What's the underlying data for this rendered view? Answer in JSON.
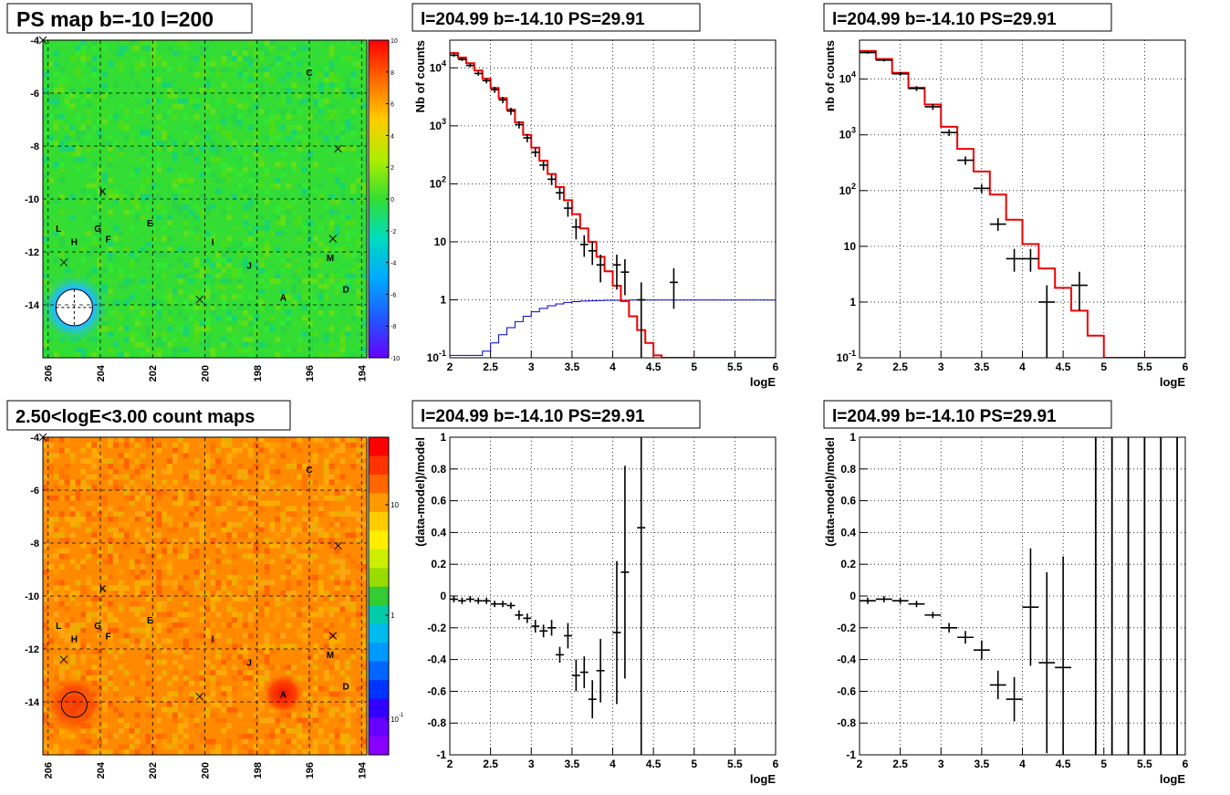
{
  "titles": {
    "p1": "PS map b=-10 l=200",
    "p2": "l=204.99 b=-14.10 PS=29.91",
    "p3": "l=204.99 b=-14.10 PS=29.91",
    "p4": "2.50<logE<3.00 count maps",
    "p5": "l=204.99 b=-14.10 PS=29.91",
    "p6": "l=204.99 b=-14.10 PS=29.91"
  },
  "chart_data": [
    {
      "id": "ps_map",
      "type": "heatmap",
      "title": "PS map b=-10 l=200",
      "x_ticks": [
        "206",
        "204",
        "202",
        "200",
        "198",
        "196",
        "194"
      ],
      "y_ticks": [
        "-4",
        "-6",
        "-8",
        "-10",
        "-12",
        "-14"
      ],
      "xlim": [
        206.2,
        193.8
      ],
      "ylim": [
        -16,
        -4
      ],
      "colorbar_ticks": [
        "10",
        "8",
        "6",
        "4",
        "2",
        "0",
        "-2",
        "-4",
        "-6",
        "-8",
        "-10"
      ],
      "colorbar_range": [
        -10,
        10
      ],
      "dominant_color": "#33dd33",
      "labels": [
        {
          "text": "C",
          "l": 196.0,
          "b": -5.2
        },
        {
          "text": "K",
          "l": 203.9,
          "b": -9.7
        },
        {
          "text": "L",
          "l": 205.6,
          "b": -11.1
        },
        {
          "text": "G",
          "l": 204.1,
          "b": -11.1
        },
        {
          "text": "F",
          "l": 203.7,
          "b": -11.5
        },
        {
          "text": "H",
          "l": 205.0,
          "b": -11.6
        },
        {
          "text": "E",
          "l": 202.1,
          "b": -10.9
        },
        {
          "text": "I",
          "l": 199.7,
          "b": -11.6
        },
        {
          "text": "J",
          "l": 198.3,
          "b": -12.5
        },
        {
          "text": "M",
          "l": 195.2,
          "b": -12.2
        },
        {
          "text": "A",
          "l": 197.0,
          "b": -13.7
        },
        {
          "text": "D",
          "l": 194.6,
          "b": -13.4
        }
      ],
      "crosses": [
        {
          "l": 206.2,
          "b": -4.0
        },
        {
          "l": 194.9,
          "b": -8.1
        },
        {
          "l": 195.1,
          "b": -11.5
        },
        {
          "l": 205.4,
          "b": -12.4
        },
        {
          "l": 200.2,
          "b": -13.8
        }
      ],
      "ps_circle": {
        "l": 205.0,
        "b": -14.1
      }
    },
    {
      "id": "spectrum_fine",
      "type": "line",
      "title": "l=204.99 b=-14.10 PS=29.91",
      "xlabel": "logE",
      "ylabel": "Nb of counts",
      "xlim": [
        2,
        6
      ],
      "ylim": [
        0.1,
        30000
      ],
      "yscale": "log",
      "x_ticks": [
        "2",
        "2.5",
        "3",
        "3.5",
        "4",
        "4.5",
        "5",
        "5.5",
        "6"
      ],
      "y_ticks": [
        "10^-1",
        "1",
        "10",
        "10^2",
        "10^3",
        "10^4"
      ],
      "grid": true,
      "model_bin_width": 0.1,
      "model_step_x": [
        2.0,
        2.1,
        2.2,
        2.3,
        2.4,
        2.5,
        2.6,
        2.7,
        2.8,
        2.9,
        3.0,
        3.1,
        3.2,
        3.3,
        3.4,
        3.5,
        3.6,
        3.7,
        3.8,
        3.9,
        4.0,
        4.1,
        4.2,
        4.3,
        4.4,
        4.5,
        4.6,
        4.7,
        4.8,
        4.9,
        5.0,
        5.1,
        5.2,
        5.3,
        5.4,
        5.5,
        5.6,
        5.7,
        5.8,
        5.9
      ],
      "model_step_y": [
        18000,
        15000,
        12000,
        9000,
        6500,
        4500,
        3000,
        1900,
        1150,
        700,
        420,
        250,
        148,
        88,
        52,
        30,
        17,
        10,
        5.5,
        3.1,
        1.75,
        0.95,
        0.52,
        0.3,
        0.18,
        0.11,
        0.1,
        0.1,
        0.1,
        0.1,
        0.1,
        0.1,
        0.1,
        0.1,
        0.1,
        0.1,
        0.1,
        0.1,
        0.1,
        0.1
      ],
      "efficiency_bin_width": 0.1,
      "efficiency_x": [
        2.0,
        2.1,
        2.2,
        2.3,
        2.4,
        2.5,
        2.6,
        2.7,
        2.8,
        2.9,
        3.0,
        3.1,
        3.2,
        3.3,
        3.4,
        3.5,
        3.6,
        3.7,
        3.8,
        3.9,
        4.0,
        4.1,
        4.2,
        4.3,
        4.4,
        4.5,
        4.6,
        4.7,
        4.8,
        4.9,
        5.0,
        5.1,
        5.2,
        5.3,
        5.4,
        5.5,
        5.6,
        5.7,
        5.8,
        5.9
      ],
      "efficiency_y": [
        0.11,
        0.11,
        0.11,
        0.11,
        0.13,
        0.18,
        0.25,
        0.33,
        0.42,
        0.52,
        0.62,
        0.71,
        0.79,
        0.85,
        0.9,
        0.93,
        0.95,
        0.96,
        0.97,
        0.98,
        0.98,
        0.98,
        0.99,
        0.99,
        0.99,
        0.99,
        0.99,
        0.99,
        0.99,
        0.99,
        0.99,
        0.99,
        0.99,
        0.99,
        0.99,
        0.99,
        0.99,
        0.99,
        0.99,
        0.99
      ],
      "data_points": [
        {
          "x": 2.05,
          "y": 16500,
          "lo": 15500,
          "hi": 17500
        },
        {
          "x": 2.15,
          "y": 14000,
          "lo": 13100,
          "hi": 14900
        },
        {
          "x": 2.25,
          "y": 11000,
          "lo": 10200,
          "hi": 11800
        },
        {
          "x": 2.35,
          "y": 8000,
          "lo": 7300,
          "hi": 8700
        },
        {
          "x": 2.45,
          "y": 6000,
          "lo": 5400,
          "hi": 6600
        },
        {
          "x": 2.55,
          "y": 4200,
          "lo": 3700,
          "hi": 4700
        },
        {
          "x": 2.65,
          "y": 2800,
          "lo": 2450,
          "hi": 3150
        },
        {
          "x": 2.75,
          "y": 1800,
          "lo": 1550,
          "hi": 2050
        },
        {
          "x": 2.85,
          "y": 1050,
          "lo": 900,
          "hi": 1200
        },
        {
          "x": 2.95,
          "y": 620,
          "lo": 520,
          "hi": 720
        },
        {
          "x": 3.05,
          "y": 350,
          "lo": 290,
          "hi": 410
        },
        {
          "x": 3.15,
          "y": 210,
          "lo": 170,
          "hi": 250
        },
        {
          "x": 3.25,
          "y": 120,
          "lo": 95,
          "hi": 145
        },
        {
          "x": 3.35,
          "y": 70,
          "lo": 53,
          "hi": 87
        },
        {
          "x": 3.45,
          "y": 38,
          "lo": 27,
          "hi": 49
        },
        {
          "x": 3.55,
          "y": 18,
          "lo": 11,
          "hi": 25
        },
        {
          "x": 3.65,
          "y": 9,
          "lo": 5.5,
          "hi": 13
        },
        {
          "x": 3.75,
          "y": 7,
          "lo": 4,
          "hi": 10
        },
        {
          "x": 3.85,
          "y": 4,
          "lo": 2,
          "hi": 6
        },
        {
          "x": 4.05,
          "y": 4,
          "lo": 1.5,
          "hi": 6
        },
        {
          "x": 4.15,
          "y": 3,
          "lo": 1.2,
          "hi": 5
        },
        {
          "x": 4.35,
          "y": 1,
          "lo": 0.1,
          "hi": 2
        },
        {
          "x": 4.75,
          "y": 2,
          "lo": 0.7,
          "hi": 3.5
        }
      ]
    },
    {
      "id": "spectrum_coarse",
      "type": "line",
      "title": "l=204.99 b=-14.10 PS=29.91",
      "xlabel": "logE",
      "ylabel": "nb of counts",
      "xlim": [
        2,
        6
      ],
      "ylim": [
        0.1,
        50000
      ],
      "yscale": "log",
      "x_ticks": [
        "2",
        "2.5",
        "3",
        "3.5",
        "4",
        "4.5",
        "5",
        "5.5",
        "6"
      ],
      "y_ticks": [
        "10^-1",
        "1",
        "10",
        "10^2",
        "10^3",
        "10^4"
      ],
      "grid": true,
      "model_bin_width": 0.2,
      "model_step_x": [
        2.0,
        2.2,
        2.4,
        2.6,
        2.8,
        3.0,
        3.2,
        3.4,
        3.6,
        3.8,
        4.0,
        4.2,
        4.4,
        4.6,
        4.8,
        5.0,
        5.2,
        5.4,
        5.6,
        5.8
      ],
      "model_step_y": [
        32000,
        23000,
        13000,
        7000,
        3500,
        1400,
        560,
        220,
        85,
        30,
        11,
        4,
        1.8,
        0.7,
        0.25,
        0.1,
        0.1,
        0.1,
        0.1,
        0.1
      ],
      "data_points": [
        {
          "x": 2.1,
          "y": 30000,
          "lo": 28500,
          "hi": 31500
        },
        {
          "x": 2.3,
          "y": 22000,
          "lo": 20700,
          "hi": 23300
        },
        {
          "x": 2.5,
          "y": 12500,
          "lo": 11500,
          "hi": 13500
        },
        {
          "x": 2.7,
          "y": 6800,
          "lo": 6100,
          "hi": 7500
        },
        {
          "x": 2.9,
          "y": 3200,
          "lo": 2800,
          "hi": 3600
        },
        {
          "x": 3.1,
          "y": 1100,
          "lo": 950,
          "hi": 1250
        },
        {
          "x": 3.3,
          "y": 350,
          "lo": 290,
          "hi": 410
        },
        {
          "x": 3.5,
          "y": 110,
          "lo": 90,
          "hi": 130
        },
        {
          "x": 3.7,
          "y": 25,
          "lo": 19,
          "hi": 32
        },
        {
          "x": 3.9,
          "y": 6,
          "lo": 3.5,
          "hi": 9
        },
        {
          "x": 4.1,
          "y": 6,
          "lo": 3.5,
          "hi": 9
        },
        {
          "x": 4.3,
          "y": 1,
          "lo": 0.1,
          "hi": 2
        },
        {
          "x": 4.7,
          "y": 2,
          "lo": 0.7,
          "hi": 3.5
        }
      ]
    },
    {
      "id": "count_map",
      "type": "heatmap",
      "title": "2.50<logE<3.00 count maps",
      "x_ticks": [
        "206",
        "204",
        "202",
        "200",
        "198",
        "196",
        "194"
      ],
      "y_ticks": [
        "-4",
        "-6",
        "-8",
        "-10",
        "-12",
        "-14"
      ],
      "xlim": [
        206.2,
        193.8
      ],
      "ylim": [
        -16,
        -4
      ],
      "colorbar_ticks": [
        "10",
        "1",
        "10^-1"
      ],
      "colorbar_scale": "log",
      "dominant_color": "#ff8800",
      "labels": [
        {
          "text": "C",
          "l": 196.0,
          "b": -5.2
        },
        {
          "text": "K",
          "l": 203.9,
          "b": -9.7
        },
        {
          "text": "L",
          "l": 205.6,
          "b": -11.1
        },
        {
          "text": "G",
          "l": 204.1,
          "b": -11.1
        },
        {
          "text": "F",
          "l": 203.7,
          "b": -11.5
        },
        {
          "text": "H",
          "l": 205.0,
          "b": -11.6
        },
        {
          "text": "E",
          "l": 202.1,
          "b": -10.9
        },
        {
          "text": "I",
          "l": 199.7,
          "b": -11.6
        },
        {
          "text": "J",
          "l": 198.3,
          "b": -12.5
        },
        {
          "text": "M",
          "l": 195.2,
          "b": -12.2
        },
        {
          "text": "A",
          "l": 197.0,
          "b": -13.7
        },
        {
          "text": "D",
          "l": 194.6,
          "b": -13.4
        }
      ],
      "crosses": [
        {
          "l": 206.2,
          "b": -4.0
        },
        {
          "l": 194.9,
          "b": -8.1
        },
        {
          "l": 195.1,
          "b": -11.5
        },
        {
          "l": 205.4,
          "b": -12.4
        },
        {
          "l": 200.2,
          "b": -13.8
        }
      ],
      "ps_circle": {
        "l": 205.0,
        "b": -14.1
      }
    },
    {
      "id": "residual_fine",
      "type": "scatter",
      "title": "l=204.99 b=-14.10 PS=29.91",
      "xlabel": "logE",
      "ylabel": "(data-model)/model",
      "xlim": [
        2,
        6
      ],
      "ylim": [
        -1,
        1
      ],
      "x_ticks": [
        "2",
        "2.5",
        "3",
        "3.5",
        "4",
        "4.5",
        "5",
        "5.5",
        "6"
      ],
      "y_ticks": [
        "-1",
        "-0.8",
        "-0.6",
        "-0.4",
        "-0.2",
        "0",
        "0.2",
        "0.4",
        "0.6",
        "0.8",
        "1"
      ],
      "grid": true,
      "xerr": 0.05,
      "points": [
        {
          "x": 2.05,
          "y": -0.02,
          "e": 0.02
        },
        {
          "x": 2.15,
          "y": -0.03,
          "e": 0.02
        },
        {
          "x": 2.25,
          "y": -0.02,
          "e": 0.02
        },
        {
          "x": 2.35,
          "y": -0.03,
          "e": 0.02
        },
        {
          "x": 2.45,
          "y": -0.03,
          "e": 0.02
        },
        {
          "x": 2.55,
          "y": -0.05,
          "e": 0.02
        },
        {
          "x": 2.65,
          "y": -0.05,
          "e": 0.02
        },
        {
          "x": 2.75,
          "y": -0.06,
          "e": 0.02
        },
        {
          "x": 2.85,
          "y": -0.12,
          "e": 0.03
        },
        {
          "x": 2.95,
          "y": -0.14,
          "e": 0.03
        },
        {
          "x": 3.05,
          "y": -0.19,
          "e": 0.04
        },
        {
          "x": 3.15,
          "y": -0.22,
          "e": 0.04
        },
        {
          "x": 3.25,
          "y": -0.2,
          "e": 0.05
        },
        {
          "x": 3.35,
          "y": -0.37,
          "e": 0.05
        },
        {
          "x": 3.45,
          "y": -0.25,
          "e": 0.08
        },
        {
          "x": 3.55,
          "y": -0.5,
          "e": 0.1
        },
        {
          "x": 3.65,
          "y": -0.48,
          "e": 0.1
        },
        {
          "x": 3.75,
          "y": -0.65,
          "e": 0.12
        },
        {
          "x": 3.85,
          "y": -0.47,
          "e": 0.2
        },
        {
          "x": 4.05,
          "y": -0.23,
          "e": 0.45
        },
        {
          "x": 4.15,
          "y": 0.15,
          "e": 0.67
        },
        {
          "x": 4.35,
          "y": 0.43,
          "e": 1.5
        }
      ]
    },
    {
      "id": "residual_coarse",
      "type": "scatter",
      "title": "l=204.99 b=-14.10 PS=29.91",
      "xlabel": "logE",
      "ylabel": "(data-model)/model",
      "xlim": [
        2,
        6
      ],
      "ylim": [
        -1,
        1
      ],
      "x_ticks": [
        "2",
        "2.5",
        "3",
        "3.5",
        "4",
        "4.5",
        "5",
        "5.5",
        "6"
      ],
      "y_ticks": [
        "-1",
        "-0.8",
        "-0.6",
        "-0.4",
        "-0.2",
        "0",
        "0.2",
        "0.4",
        "0.6",
        "0.8",
        "1"
      ],
      "grid": true,
      "xerr": 0.1,
      "points": [
        {
          "x": 2.1,
          "y": -0.03,
          "e": 0.02
        },
        {
          "x": 2.3,
          "y": -0.02,
          "e": 0.02
        },
        {
          "x": 2.5,
          "y": -0.03,
          "e": 0.02
        },
        {
          "x": 2.7,
          "y": -0.05,
          "e": 0.02
        },
        {
          "x": 2.9,
          "y": -0.12,
          "e": 0.02
        },
        {
          "x": 3.1,
          "y": -0.2,
          "e": 0.03
        },
        {
          "x": 3.3,
          "y": -0.26,
          "e": 0.04
        },
        {
          "x": 3.5,
          "y": -0.34,
          "e": 0.06
        },
        {
          "x": 3.7,
          "y": -0.56,
          "e": 0.09
        },
        {
          "x": 3.9,
          "y": -0.65,
          "e": 0.14
        },
        {
          "x": 4.1,
          "y": -0.07,
          "e": 0.37
        },
        {
          "x": 4.3,
          "y": -0.42,
          "e": 0.57
        },
        {
          "x": 4.5,
          "y": -0.45,
          "e": 0.7
        }
      ],
      "full_range_bars_x": [
        4.9,
        5.1,
        5.3,
        5.5,
        5.7,
        5.9
      ]
    }
  ]
}
